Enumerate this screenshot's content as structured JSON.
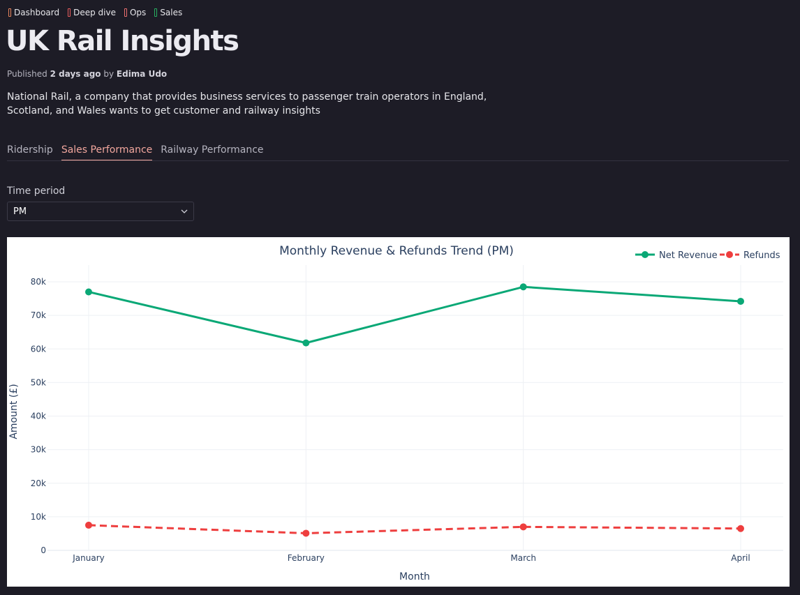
{
  "tags": [
    {
      "label": "Dashboard",
      "color": "#e8845c"
    },
    {
      "label": "Deep dive",
      "color": "#e85c5c"
    },
    {
      "label": "Ops",
      "color": "#e86d6d"
    },
    {
      "label": "Sales",
      "color": "#27ae60"
    }
  ],
  "header": {
    "title": "UK Rail Insights",
    "published_prefix": "Published",
    "published_when": "2 days ago",
    "by": "by",
    "author": "Edima Udo",
    "description": "National Rail, a company that provides business services to passenger train operators in England, Scotland, and Wales wants to get customer and railway insights"
  },
  "tabs": [
    {
      "label": "Ridership",
      "active": false
    },
    {
      "label": "Sales Performance",
      "active": true
    },
    {
      "label": "Railway Performance",
      "active": false
    }
  ],
  "filter": {
    "label": "Time period",
    "value": "PM"
  },
  "chart_data": {
    "type": "line",
    "title": "Monthly Revenue & Refunds Trend (PM)",
    "xlabel": "Month",
    "ylabel": "Amount (£)",
    "categories": [
      "January",
      "February",
      "March",
      "April"
    ],
    "ylim": [
      0,
      85000
    ],
    "yticks": [
      0,
      10000,
      20000,
      30000,
      40000,
      50000,
      60000,
      70000,
      80000
    ],
    "ytick_labels": [
      "0",
      "10k",
      "20k",
      "30k",
      "40k",
      "50k",
      "60k",
      "70k",
      "80k"
    ],
    "legend_position": "top-right",
    "series": [
      {
        "name": "Net Revenue",
        "values": [
          77000,
          61800,
          78500,
          74200
        ],
        "color": "#0aa876",
        "dash": false
      },
      {
        "name": "Refunds",
        "values": [
          7500,
          5100,
          7000,
          6500
        ],
        "color": "#ee3e3e",
        "dash": true
      }
    ]
  }
}
